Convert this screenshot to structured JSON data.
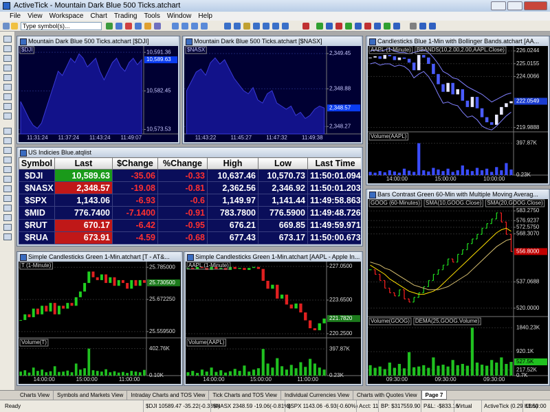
{
  "app": {
    "title": "ActiveTick - Mountain Dark Blue 500 Ticks.atchart",
    "menu": [
      "File",
      "View",
      "Workspace",
      "Chart",
      "Trading",
      "Tools",
      "Window",
      "Help"
    ],
    "symbol_placeholder": "Type symbol(s)..."
  },
  "charts": [
    {
      "type": "area",
      "title": "Mountain Dark Blue 500 Ticks.atchart [$DJI]",
      "legends": [
        "$DJI"
      ],
      "bg": "#000033",
      "grid_color": "#1c2370",
      "color": "#3a3ad8",
      "fill": "#12128a",
      "axis_text": "#c8c8ff",
      "ylim": [
        10572.5,
        10592.5
      ],
      "yticks": [
        {
          "value": 10591.36,
          "label": "10,591.36"
        },
        {
          "value": 10582.45,
          "label": "10,582.45"
        },
        {
          "value": 10573.53,
          "label": "10,573.53"
        }
      ],
      "last": {
        "value": 10589.63,
        "label": "10,589.63"
      },
      "last_color": "#0a3cf0",
      "xticks": [
        "11:31:24",
        "11:37:24",
        "11:43:24",
        "11:49:07"
      ],
      "values": [
        10580,
        10578,
        10576,
        10574.5,
        10573.8,
        10575,
        10578,
        10581,
        10584,
        10587,
        10586,
        10588,
        10590,
        10589,
        10591,
        10590,
        10588,
        10589,
        10590,
        10587,
        10585,
        10587,
        10589,
        10590,
        10588,
        10587,
        10589,
        10590,
        10588.5,
        10589.63
      ]
    },
    {
      "type": "area",
      "title": "Mountain Dark Blue 500 Ticks.atchart [$NASX]",
      "legends": [
        "$NASX"
      ],
      "bg": "#000033",
      "grid_color": "#1c2370",
      "color": "#3a3ad8",
      "fill": "#12128a",
      "axis_text": "#c8c8ff",
      "ylim": [
        2348.15,
        2349.55
      ],
      "yticks": [
        {
          "value": 2349.45,
          "label": "2,349.45"
        },
        {
          "value": 2348.88,
          "label": "2,348.88"
        },
        {
          "value": 2348.27,
          "label": "2,348.27"
        }
      ],
      "last": {
        "value": 2348.57,
        "label": "2,348.57"
      },
      "last_color": "#0a3cf0",
      "xticks": [
        "11:43:22",
        "11:45:27",
        "11:47:32",
        "11:49:38"
      ],
      "values": [
        2348.85,
        2349.0,
        2349.15,
        2349.2,
        2349.1,
        2349.3,
        2349.38,
        2349.28,
        2349.35,
        2349.2,
        2349.05,
        2348.95,
        2348.85,
        2348.8,
        2348.9,
        2348.7,
        2348.65,
        2348.8,
        2348.85,
        2348.65,
        2348.6,
        2348.55,
        2348.6,
        2348.45,
        2348.5,
        2348.4,
        2348.45,
        2348.55,
        2348.6,
        2348.57
      ]
    },
    {
      "type": "candlestick",
      "title": "Candlesticks Blue 1-Min with Bollinger Bands.atchart [AA...",
      "legends": [
        "AAPL (1-Minute)",
        "BBANDS(10,2.00,2.00,AAPL.Close)"
      ],
      "bg": "#000000",
      "grid_color": "#2a2a2a",
      "up_color": "#e8e8ff",
      "down_color": "#4a5cff",
      "axis_text": "#dddddd",
      "ylim": [
        219.7,
        226.3
      ],
      "yticks": [
        226.0244,
        225.0155,
        224.0066,
        219.9888
      ],
      "last": {
        "value": 222.0549,
        "label": "222.0549"
      },
      "last_color": "#1a3cd0",
      "xticks": [
        "14:00:00",
        "15:00:00",
        "10:00:00"
      ],
      "values": [
        225.5,
        225.6,
        225.4,
        225.7,
        225.6,
        225.3,
        225.5,
        225.4,
        225.1,
        224.5,
        225.7,
        225.5,
        225.0,
        224.2,
        223.4,
        222.8,
        223.5,
        222.6,
        223.0,
        222.1,
        221.6,
        222.4,
        221.5,
        220.8,
        220.4,
        220.2,
        221.0,
        221.6,
        221.9,
        222.0549
      ],
      "overlays": [
        {
          "color": "#8080ff",
          "values": [
            226.0,
            226.1,
            226.0,
            226.1,
            226.2,
            226.0,
            225.9,
            225.9,
            225.8,
            225.9,
            226.0,
            226.1,
            225.9,
            225.5,
            225.0,
            224.4,
            224.2,
            223.9,
            223.8,
            223.5,
            223.2,
            223.0,
            222.8,
            222.6,
            222.3,
            222.0,
            222.2,
            222.4,
            222.6,
            222.7
          ]
        },
        {
          "color": "#8080ff",
          "values": [
            225.0,
            225.1,
            224.9,
            225.0,
            225.0,
            224.8,
            224.9,
            224.8,
            224.5,
            223.9,
            224.2,
            224.4,
            224.0,
            223.4,
            222.6,
            221.9,
            222.0,
            221.8,
            221.7,
            221.2,
            220.8,
            220.9,
            220.6,
            220.1,
            219.9,
            219.8,
            220.1,
            220.5,
            220.9,
            221.2
          ]
        }
      ],
      "volume": {
        "legends": [
          "Volume(AAPL)"
        ],
        "color": "#3a4cff",
        "ylim": [
          0,
          420
        ],
        "yticks": [
          {
            "value": 397.87,
            "label": "397.87K"
          },
          {
            "value": 0.23,
            "label": "0.23K"
          }
        ],
        "values": [
          40,
          30,
          50,
          35,
          60,
          45,
          30,
          80,
          55,
          40,
          397.87,
          60,
          45,
          90,
          70,
          50,
          80,
          40,
          60,
          120,
          70,
          50,
          90,
          60,
          80,
          40,
          100,
          60,
          150,
          70
        ]
      }
    },
    {
      "type": "candlestick",
      "title": "Simple Candlesticks Green 1-Min.atchart [T - AT&...",
      "legends": [
        "T (1-Minute)"
      ],
      "bg": "#000000",
      "grid_color": "#2a2a2a",
      "up_color": "#20d020",
      "down_color": "#e02020",
      "axis_text": "#dddddd",
      "ylim": [
        25.54,
        25.8
      ],
      "yticks": [
        {
          "value": 25.785,
          "label": "25.785000"
        },
        {
          "value": 25.67225,
          "label": "25.672250"
        },
        {
          "value": 25.5595,
          "label": "25.559500"
        }
      ],
      "last": {
        "value": 25.7305,
        "label": "25.730500"
      },
      "last_color": "#1c7a1c",
      "xticks": [
        "14:00:00",
        "15:00:00",
        "11:00:00"
      ],
      "values": [
        25.6,
        25.62,
        25.61,
        25.64,
        25.62,
        25.65,
        25.63,
        25.66,
        25.62,
        25.65,
        25.64,
        25.66,
        25.65,
        25.68,
        25.7,
        25.73,
        25.77,
        25.75,
        25.74,
        25.76,
        25.73,
        25.75,
        25.72,
        25.74,
        25.73,
        25.71,
        25.74,
        25.72,
        25.74,
        25.7305
      ],
      "volume": {
        "legends": [
          "Volume(T)"
        ],
        "color": "#20c020",
        "ylim": [
          0,
          420
        ],
        "yticks": [
          {
            "value": 402.76,
            "label": "402.76K"
          },
          {
            "value": 0.1,
            "label": "0.10K"
          }
        ],
        "values": [
          60,
          80,
          45,
          120,
          70,
          90,
          50,
          65,
          140,
          55,
          60,
          75,
          50,
          180,
          90,
          110,
          402.76,
          80,
          70,
          60,
          95,
          50,
          65,
          45,
          55,
          40,
          70,
          60,
          50,
          85
        ]
      }
    },
    {
      "type": "candlestick",
      "title": "Simple Candlesticks Green 1-Min.atchart [AAPL - Apple In...",
      "legends": [
        "AAPL (1-Minute)"
      ],
      "bg": "#000000",
      "grid_color": "#2a2a2a",
      "up_color": "#20d020",
      "down_color": "#e02020",
      "axis_text": "#dddddd",
      "ylim": [
        219.9,
        227.4
      ],
      "yticks": [
        {
          "value": 227.05,
          "label": "227.0500"
        },
        {
          "value": 223.65,
          "label": "223.6500"
        },
        {
          "value": 220.25,
          "label": "220.2500"
        }
      ],
      "last": {
        "value": 221.782,
        "label": "221.7820"
      },
      "last_color": "#1c7a1c",
      "xticks": [
        "14:00:00",
        "15:00:00",
        "11:00:00"
      ],
      "values": [
        226.9,
        226.8,
        227.0,
        226.9,
        226.7,
        227.0,
        226.8,
        226.9,
        226.7,
        227.0,
        226.8,
        226.9,
        226.7,
        226.9,
        227.0,
        226.8,
        225.6,
        224.8,
        225.2,
        223.8,
        224.2,
        223.2,
        222.8,
        223.3,
        222.4,
        221.6,
        220.8,
        220.6,
        221.3,
        221.782
      ],
      "volume": {
        "legends": [
          "Volume(AAPL)"
        ],
        "color": "#20c020",
        "ylim": [
          0,
          420
        ],
        "yticks": [
          {
            "value": 397.87,
            "label": "397.87K"
          },
          {
            "value": 0.23,
            "label": "0.23K"
          }
        ],
        "values": [
          50,
          70,
          40,
          90,
          60,
          120,
          55,
          80,
          45,
          65,
          100,
          70,
          150,
          60,
          90,
          110,
          397.87,
          180,
          120,
          260,
          140,
          90,
          160,
          110,
          200,
          130,
          250,
          180,
          120,
          90
        ]
      }
    },
    {
      "type": "bars",
      "title": "Bars Contrast Green 60-Min with Multiple Moving Averag...",
      "legends": [
        "GOOG (60-Minutes)",
        "SMA(10,GOOG.Close)",
        "SMA(20,GOOG.Close)"
      ],
      "bg": "#000000",
      "grid_color": "#2a2a2a",
      "up_color": "#20e020",
      "down_color": "#ff2020",
      "axis_text": "#dddddd",
      "ylim": [
        515,
        590
      ],
      "yticks": [
        {
          "value": 583.275,
          "label": "583.2750"
        },
        576.9237,
        {
          "value": 572.575,
          "label": "572.5750"
        },
        {
          "value": 568.307,
          "label": "568.3070"
        },
        537.0688,
        {
          "value": 520,
          "label": "520.0000"
        }
      ],
      "last": {
        "value": 556.8,
        "label": "556.8000"
      },
      "last_color": "#c00000",
      "xticks": [
        "09:30:00",
        "09:30:00",
        "09:30:00"
      ],
      "values": [
        545,
        542,
        538,
        533,
        530,
        528,
        532,
        526,
        524,
        527,
        530,
        534,
        538,
        542,
        545,
        548,
        552,
        550,
        555,
        558,
        562,
        565,
        568,
        572,
        575,
        578,
        582,
        576,
        568,
        556.8
      ],
      "overlays": [
        {
          "color": "#ffe000",
          "values": [
            548,
            546,
            544,
            542,
            539,
            537,
            535,
            533,
            531,
            530,
            529,
            529,
            530,
            531,
            533,
            536,
            539,
            542,
            545,
            548,
            551,
            554,
            557,
            560,
            563,
            566,
            569,
            571,
            572,
            570
          ]
        },
        {
          "color": "#d8c070",
          "values": [
            550,
            549,
            548,
            546,
            545,
            543,
            541,
            539,
            537,
            535,
            534,
            533,
            532,
            532,
            532,
            533,
            534,
            536,
            538,
            540,
            542,
            545,
            548,
            551,
            554,
            557,
            560,
            562,
            564,
            565
          ]
        }
      ],
      "volume": {
        "legends": [
          "Volume(GOOG)",
          "DEMA(25,GOOG.Volume)"
        ],
        "color": "#20c020",
        "ylim": [
          0,
          1900
        ],
        "yticks": [
          {
            "value": 1840.23,
            "label": "1840.23K"
          },
          {
            "value": 920.1,
            "label": "920.1K"
          },
          {
            "value": 217.52,
            "label": "217.52K"
          },
          {
            "value": 0.7,
            "label": "0.7K"
          }
        ],
        "last": {
          "value": 527.5,
          "label": "527.5K"
        },
        "values": [
          400,
          300,
          350,
          250,
          500,
          300,
          450,
          280,
          900,
          320,
          350,
          400,
          300,
          700,
          380,
          420,
          350,
          600,
          400,
          450,
          380,
          1840.23,
          500,
          420,
          380,
          600,
          500,
          700,
          450,
          527.5
        ]
      }
    }
  ],
  "quote_list": {
    "title": "US Indicies Blue.atqlist",
    "columns": [
      "Symbol",
      "Last",
      "$Change",
      "%Change",
      "High",
      "Low",
      "Last Time"
    ],
    "rows": [
      [
        "$DJI",
        "10,589.63",
        "-35.06",
        "-0.33",
        "10,637.46",
        "10,570.73",
        "11:50:01.094"
      ],
      [
        "$NASX",
        "2,348.57",
        "-19.08",
        "-0.81",
        "2,362.56",
        "2,346.92",
        "11:50:01.203"
      ],
      [
        "$SPX",
        "1,143.06",
        "-6.93",
        "-0.6",
        "1,149.97",
        "1,141.44",
        "11:49:58.863"
      ],
      [
        "$MID",
        "776.7400",
        "-7.1400",
        "-0.91",
        "783.7800",
        "776.5900",
        "11:49:48.726"
      ],
      [
        "$RUT",
        "670.17",
        "-6.42",
        "-0.95",
        "676.21",
        "669.85",
        "11:49:59.971"
      ],
      [
        "$RUA",
        "673.91",
        "-4.59",
        "-0.68",
        "677.43",
        "673.17",
        "11:50:00.673"
      ]
    ],
    "last_highlight": [
      "#1a9a1a",
      "#c01818",
      null,
      null,
      "#c01818",
      "#c01818"
    ]
  },
  "tabs": [
    "Charts View",
    "Symbols and Markets View",
    "Intraday Charts and TOS View",
    "Tick Charts and TOS View",
    "Individual Currencies View",
    "Charts with Quotes View",
    "Page 7"
  ],
  "active_tab": 6,
  "status": [
    "Ready",
    "$DJI 10589.47 -35.22(-0.33%)",
    "$NASX 2348.59 -19.06(-0.81%)",
    "$SPX 1143.06 -6.93(-0.60%)",
    "Acct: 11",
    "BP: $317559.90",
    "P&L: -$833.16",
    "Virtual",
    "ActiveTick (0.29 KB/s)",
    "11:50:00"
  ]
}
